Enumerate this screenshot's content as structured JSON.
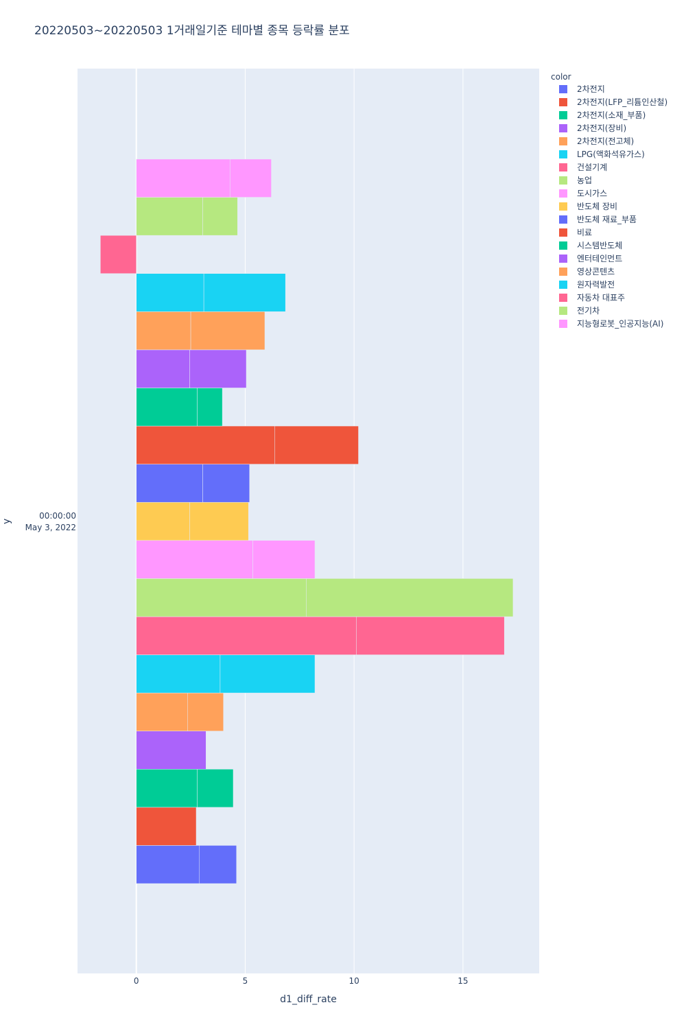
{
  "chart_data": {
    "type": "bar",
    "orientation": "horizontal",
    "barmode": "stacked segments per category",
    "title": "20220503~20220503 1거래일기준 테마별 종목 등락률 분포",
    "xlabel": "d1_diff_rate",
    "ylabel": "y",
    "y_category_label": [
      "00:00:00",
      "May 3, 2022"
    ],
    "xlim": [
      -2.7,
      18.5
    ],
    "x_ticks": [
      0,
      5,
      10,
      15
    ],
    "grid": true,
    "legend_title": "color",
    "legend_position": "right",
    "series": [
      {
        "name": "2차전지",
        "color": "#636efa",
        "segments": [
          2.9,
          1.7
        ]
      },
      {
        "name": "2차전지(LFP_리튬인산철)",
        "color": "#EF553B",
        "segments": [
          2.75
        ]
      },
      {
        "name": "2차전지(소재_부품)",
        "color": "#00cc96",
        "segments": [
          2.8,
          1.65
        ]
      },
      {
        "name": "2차전지(장비)",
        "color": "#ab63fa",
        "segments": [
          3.2
        ]
      },
      {
        "name": "2차전지(전고체)",
        "color": "#FFA15A",
        "segments": [
          2.35,
          1.65
        ]
      },
      {
        "name": "LPG(액화석유가스)",
        "color": "#19d3f3",
        "segments": [
          3.85,
          4.35
        ]
      },
      {
        "name": "건설기계",
        "color": "#FF6692",
        "segments": [
          10.1,
          6.8
        ]
      },
      {
        "name": "농업",
        "color": "#B6E880",
        "segments": [
          7.8,
          9.5
        ]
      },
      {
        "name": "도시가스",
        "color": "#FF97FF",
        "segments": [
          5.35,
          2.85
        ]
      },
      {
        "name": "반도체 장비",
        "color": "#FECB52",
        "segments": [
          2.45,
          2.7
        ]
      },
      {
        "name": "반도체 재료_부품",
        "color": "#636efa",
        "segments": [
          3.05,
          2.15
        ]
      },
      {
        "name": "비료",
        "color": "#EF553B",
        "segments": [
          6.35,
          3.85
        ]
      },
      {
        "name": "시스템반도체",
        "color": "#00cc96",
        "segments": [
          2.8,
          1.15
        ]
      },
      {
        "name": "엔터테인먼트",
        "color": "#ab63fa",
        "segments": [
          2.45,
          2.6
        ]
      },
      {
        "name": "영상콘텐츠",
        "color": "#FFA15A",
        "segments": [
          2.5,
          3.4
        ]
      },
      {
        "name": "원자력발전",
        "color": "#19d3f3",
        "segments": [
          3.1,
          3.75
        ]
      },
      {
        "name": "자동차 대표주",
        "color": "#FF6692",
        "segments": [
          -1.65
        ]
      },
      {
        "name": "전기차",
        "color": "#B6E880",
        "segments": [
          3.05,
          1.6
        ]
      },
      {
        "name": "지능형로봇_인공지능(AI)",
        "color": "#FF97FF",
        "segments": [
          4.3,
          1.9
        ]
      }
    ]
  },
  "colors": {
    "plot_background": "#E5ECF6",
    "grid": "#ffffff",
    "text": "#2a3f5f"
  }
}
